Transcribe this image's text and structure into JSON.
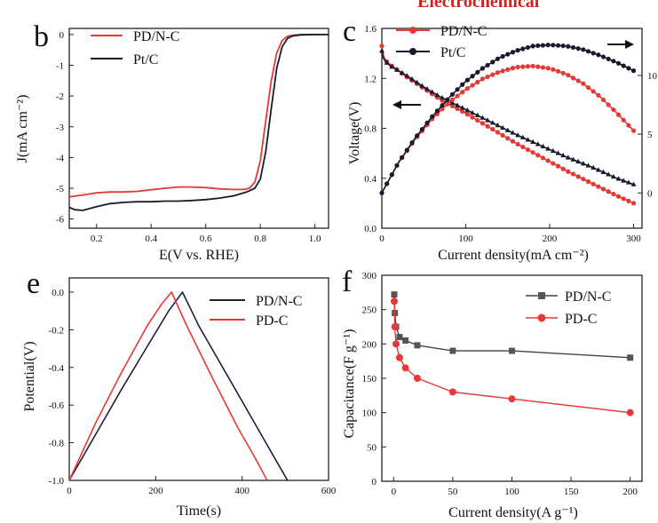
{
  "colors": {
    "red": "#e53935",
    "black": "#1a1a2e",
    "navy": "#1f1f3a",
    "gray_marker": "#555555"
  },
  "header_fragment": "Electrochemical",
  "panels": {
    "b": {
      "letter": "b",
      "xlabel": "E(V vs. RHE)",
      "ylabel": "J(mA cm⁻²)",
      "xticks": [
        "0.2",
        "0.4",
        "0.6",
        "0.8",
        "1.0"
      ],
      "yticks": [
        "0",
        "-1",
        "-2",
        "-3",
        "-4",
        "-5",
        "-6"
      ],
      "legend": [
        "PD/N-C",
        "Pt/C"
      ]
    },
    "c": {
      "letter": "c",
      "xlabel": "Current density(mA cm⁻²)",
      "ylabel": "Voltage(V)",
      "xticks": [
        "0",
        "100",
        "200",
        "300"
      ],
      "yticks": [
        "0.0",
        "0.4",
        "0.8",
        "1.2",
        "1.6"
      ],
      "right_ticks": [
        "0",
        "5",
        "10"
      ],
      "legend": [
        "PD/N-C",
        "Pt/C"
      ]
    },
    "e": {
      "letter": "e",
      "xlabel": "Time(s)",
      "ylabel": "Potential(V)",
      "xticks": [
        "0",
        "200",
        "400",
        "600"
      ],
      "yticks": [
        "0.0",
        "-0.2",
        "-0.4",
        "-0.6",
        "-0.8",
        "-1.0"
      ],
      "legend": [
        "PD/N-C",
        "PD-C"
      ]
    },
    "f": {
      "letter": "f",
      "xlabel": "Current density(A g⁻¹)",
      "ylabel": "Capacitance(F g⁻¹)",
      "xticks": [
        "0",
        "50",
        "100",
        "150",
        "200"
      ],
      "yticks": [
        "0",
        "50",
        "100",
        "150",
        "200",
        "250",
        "300"
      ],
      "legend": [
        "PD/N-C",
        "PD-C"
      ]
    }
  },
  "chart_data": [
    {
      "panel": "b",
      "type": "line",
      "title": "",
      "xlabel": "E(V vs. RHE)",
      "ylabel": "J(mA cm-2)",
      "xlim": [
        0.1,
        1.05
      ],
      "ylim": [
        -6.3,
        0.2
      ],
      "series": [
        {
          "name": "PD/N-C",
          "color": "red",
          "x": [
            0.1,
            0.15,
            0.2,
            0.25,
            0.3,
            0.35,
            0.4,
            0.45,
            0.5,
            0.55,
            0.6,
            0.65,
            0.7,
            0.74,
            0.76,
            0.78,
            0.8,
            0.82,
            0.84,
            0.86,
            0.88,
            0.9,
            0.92,
            0.95,
            1.0,
            1.05
          ],
          "y": [
            -5.28,
            -5.22,
            -5.15,
            -5.12,
            -5.12,
            -5.1,
            -5.05,
            -5.0,
            -4.96,
            -4.96,
            -4.98,
            -5.02,
            -5.04,
            -5.04,
            -5.0,
            -4.8,
            -4.1,
            -2.8,
            -1.5,
            -0.6,
            -0.2,
            -0.05,
            -0.02,
            0.0,
            0.0,
            0.0
          ]
        },
        {
          "name": "Pt/C",
          "color": "black",
          "x": [
            0.1,
            0.12,
            0.15,
            0.2,
            0.25,
            0.3,
            0.35,
            0.4,
            0.45,
            0.5,
            0.55,
            0.6,
            0.65,
            0.7,
            0.75,
            0.78,
            0.8,
            0.82,
            0.84,
            0.86,
            0.88,
            0.9,
            0.92,
            0.95,
            1.0,
            1.05
          ],
          "y": [
            -5.62,
            -5.7,
            -5.72,
            -5.6,
            -5.5,
            -5.46,
            -5.44,
            -5.44,
            -5.42,
            -5.42,
            -5.4,
            -5.37,
            -5.32,
            -5.25,
            -5.12,
            -5.0,
            -4.7,
            -3.8,
            -2.4,
            -1.1,
            -0.4,
            -0.12,
            -0.04,
            -0.01,
            0.0,
            0.0
          ]
        }
      ]
    },
    {
      "panel": "c",
      "type": "line",
      "xlabel": "Current density(mA cm-2)",
      "ylabel": "Voltage(V)",
      "xlim": [
        0,
        310
      ],
      "ylim": [
        0,
        1.6
      ],
      "y2lim": [
        -3,
        14
      ],
      "series": [
        {
          "name": "PD/N-C voltage",
          "color": "red",
          "axis": "left",
          "x": [
            0,
            2,
            5,
            10,
            20,
            30,
            50,
            70,
            100,
            130,
            160,
            190,
            220,
            250,
            280,
            300
          ],
          "y": [
            1.46,
            1.38,
            1.34,
            1.31,
            1.26,
            1.21,
            1.12,
            1.03,
            0.92,
            0.8,
            0.68,
            0.57,
            0.46,
            0.36,
            0.26,
            0.2
          ]
        },
        {
          "name": "Pt/C voltage",
          "color": "black",
          "axis": "left",
          "x": [
            0,
            2,
            5,
            10,
            20,
            30,
            50,
            70,
            100,
            130,
            160,
            190,
            220,
            250,
            280,
            300
          ],
          "y": [
            1.42,
            1.36,
            1.33,
            1.3,
            1.26,
            1.22,
            1.13,
            1.05,
            0.95,
            0.85,
            0.75,
            0.66,
            0.57,
            0.49,
            0.4,
            0.35
          ]
        },
        {
          "name": "PD/N-C power",
          "color": "red",
          "axis": "right",
          "x": [
            0,
            20,
            40,
            60,
            80,
            100,
            120,
            140,
            160,
            180,
            200,
            220,
            240,
            260,
            280,
            300
          ],
          "y": [
            0,
            2.6,
            4.6,
            6.3,
            7.7,
            8.8,
            9.7,
            10.3,
            10.7,
            10.8,
            10.6,
            10.1,
            9.3,
            8.2,
            6.8,
            5.3
          ]
        },
        {
          "name": "Pt/C power",
          "color": "black",
          "axis": "right",
          "x": [
            0,
            20,
            40,
            60,
            80,
            100,
            120,
            140,
            160,
            180,
            200,
            220,
            240,
            260,
            280,
            300
          ],
          "y": [
            0,
            2.6,
            4.7,
            6.5,
            8.1,
            9.5,
            10.6,
            11.5,
            12.1,
            12.5,
            12.6,
            12.5,
            12.2,
            11.7,
            11.1,
            10.4
          ]
        }
      ]
    },
    {
      "panel": "e",
      "type": "line",
      "xlabel": "Time(s)",
      "ylabel": "Potential(V)",
      "xlim": [
        0,
        600
      ],
      "ylim": [
        -1.0,
        0.05
      ],
      "series": [
        {
          "name": "PD/N-C",
          "color": "navy",
          "x": [
            0,
            60,
            120,
            180,
            230,
            262,
            300,
            360,
            420,
            470,
            505
          ],
          "y": [
            -1.0,
            -0.76,
            -0.52,
            -0.29,
            -0.1,
            0.0,
            -0.18,
            -0.42,
            -0.66,
            -0.86,
            -1.0
          ]
        },
        {
          "name": "PD-C",
          "color": "red",
          "x": [
            0,
            60,
            120,
            180,
            215,
            237,
            270,
            330,
            390,
            430,
            458
          ],
          "y": [
            -1.0,
            -0.7,
            -0.43,
            -0.18,
            -0.06,
            0.0,
            -0.17,
            -0.45,
            -0.72,
            -0.88,
            -1.0
          ]
        }
      ]
    },
    {
      "panel": "f",
      "type": "line",
      "xlabel": "Current density(A g-1)",
      "ylabel": "Capacitance(F g-1)",
      "xlim": [
        -10,
        210
      ],
      "ylim": [
        0,
        300
      ],
      "series": [
        {
          "name": "PD/N-C",
          "color": "gray_marker",
          "marker": "square",
          "x": [
            0.5,
            1,
            2,
            5,
            10,
            20,
            50,
            100,
            200
          ],
          "y": [
            272,
            245,
            225,
            210,
            205,
            198,
            190,
            190,
            180
          ]
        },
        {
          "name": "PD-C",
          "color": "red",
          "marker": "circle",
          "x": [
            0.5,
            1,
            2,
            5,
            10,
            20,
            50,
            100,
            200
          ],
          "y": [
            262,
            225,
            200,
            180,
            165,
            150,
            130,
            120,
            100
          ]
        }
      ]
    }
  ]
}
